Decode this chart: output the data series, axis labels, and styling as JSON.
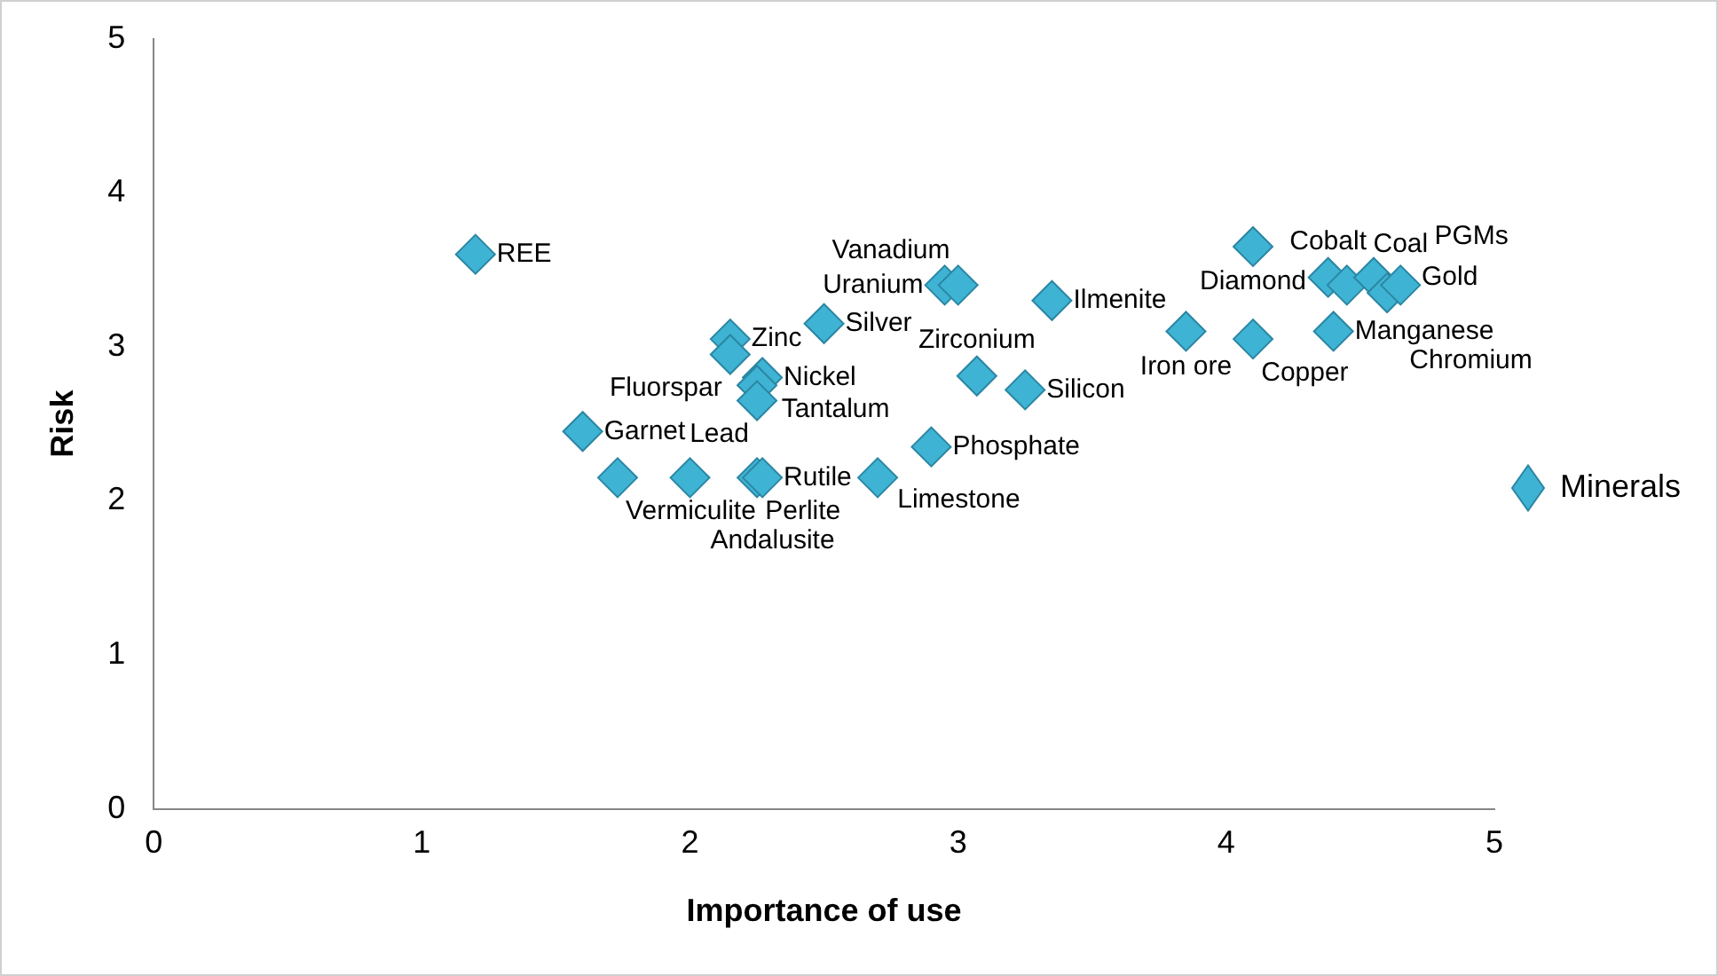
{
  "chart_data": {
    "type": "scatter",
    "xlabel": "Importance of use",
    "ylabel": "Risk",
    "xlim": [
      0,
      5
    ],
    "xticks": [
      0,
      1,
      2,
      3,
      4,
      5
    ],
    "ylim": [
      0,
      5
    ],
    "yticks": [
      0,
      1,
      2,
      3,
      4,
      5
    ],
    "grid": false,
    "legend": "right",
    "marker": "diamond",
    "series": [
      {
        "name": "Minerals",
        "color": "#3fb3d3",
        "x": [
          1.2,
          2.15,
          2.15,
          2.5,
          2.27,
          2.25,
          2.25,
          1.6,
          1.73,
          2.0,
          2.25,
          2.27,
          2.7,
          2.9,
          2.95,
          3.0,
          3.35,
          3.07,
          3.25,
          3.85,
          4.1,
          4.1,
          4.4,
          4.38,
          4.45,
          4.55,
          4.6,
          4.65
        ],
        "values": [
          3.6,
          3.05,
          2.95,
          3.15,
          2.8,
          2.75,
          2.65,
          2.45,
          2.15,
          2.15,
          2.15,
          2.15,
          2.15,
          2.35,
          3.4,
          3.4,
          3.3,
          2.81,
          2.72,
          3.1,
          3.05,
          3.65,
          3.1,
          3.45,
          3.4,
          3.45,
          3.35,
          3.4
        ]
      }
    ],
    "annotations": [
      {
        "text": "REE",
        "x": 1.2,
        "y": 3.6
      },
      {
        "text": "Zinc",
        "x": 2.15,
        "y": 3.05
      },
      {
        "text": "Fluorspar",
        "x": 2.15,
        "y": 2.95
      },
      {
        "text": "Silver",
        "x": 2.5,
        "y": 3.15
      },
      {
        "text": "Nickel",
        "x": 2.27,
        "y": 2.8
      },
      {
        "text": "Tantalum",
        "x": 2.25,
        "y": 2.75
      },
      {
        "text": "Lead",
        "x": 2.25,
        "y": 2.65
      },
      {
        "text": "Garnet",
        "x": 1.6,
        "y": 2.45
      },
      {
        "text": "Vermiculite",
        "x": 1.73,
        "y": 2.15
      },
      {
        "text": "Andalusite",
        "x": 2.0,
        "y": 2.15
      },
      {
        "text": "Perlite",
        "x": 2.25,
        "y": 2.15
      },
      {
        "text": "Rutile",
        "x": 2.27,
        "y": 2.15
      },
      {
        "text": "Limestone",
        "x": 2.7,
        "y": 2.15
      },
      {
        "text": "Phosphate",
        "x": 2.9,
        "y": 2.35
      },
      {
        "text": "Uranium",
        "x": 2.95,
        "y": 3.4
      },
      {
        "text": "Vanadium",
        "x": 3.0,
        "y": 3.4
      },
      {
        "text": "Ilmenite",
        "x": 3.35,
        "y": 3.3
      },
      {
        "text": "Zirconium",
        "x": 3.07,
        "y": 2.81
      },
      {
        "text": "Silicon",
        "x": 3.25,
        "y": 2.72
      },
      {
        "text": "Iron ore",
        "x": 3.85,
        "y": 3.1
      },
      {
        "text": "Copper",
        "x": 4.1,
        "y": 3.05
      },
      {
        "text": "Diamond",
        "x": 4.1,
        "y": 3.65
      },
      {
        "text": "Manganese",
        "x": 4.4,
        "y": 3.1
      },
      {
        "text": "Cobalt",
        "x": 4.38,
        "y": 3.45
      },
      {
        "text": "Coal",
        "x": 4.45,
        "y": 3.4
      },
      {
        "text": "Gold",
        "x": 4.55,
        "y": 3.45
      },
      {
        "text": "Chromium",
        "x": 4.6,
        "y": 3.35
      },
      {
        "text": "PGMs",
        "x": 4.65,
        "y": 3.4
      }
    ]
  }
}
